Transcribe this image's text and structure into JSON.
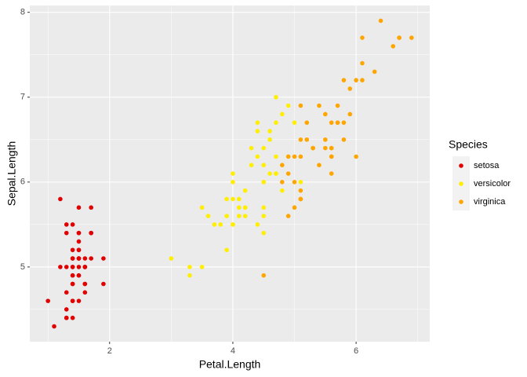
{
  "chart_data": {
    "type": "scatter",
    "x_label": "Petal.Length",
    "y_label": "Sepal.Length",
    "legend_title": "Species",
    "legend_position": "right",
    "grid": true,
    "xlim": [
      0.705,
      7.195
    ],
    "ylim": [
      4.12,
      8.08
    ],
    "xticks": [
      2,
      4,
      6
    ],
    "yticks": [
      5,
      6,
      7,
      8
    ],
    "series": [
      {
        "name": "setosa",
        "color": "#e00000",
        "x": [
          1.4,
          1.4,
          1.3,
          1.5,
          1.4,
          1.7,
          1.4,
          1.5,
          1.4,
          1.5,
          1.5,
          1.6,
          1.4,
          1.1,
          1.2,
          1.5,
          1.3,
          1.4,
          1.7,
          1.5,
          1.7,
          1.5,
          1.0,
          1.7,
          1.9,
          1.6,
          1.6,
          1.5,
          1.4,
          1.6,
          1.6,
          1.5,
          1.5,
          1.4,
          1.5,
          1.2,
          1.3,
          1.4,
          1.3,
          1.5,
          1.3,
          1.3,
          1.3,
          1.6,
          1.9,
          1.4,
          1.6,
          1.4,
          1.5,
          1.4
        ],
        "values": [
          5.1,
          4.9,
          4.7,
          4.6,
          5.0,
          5.4,
          4.6,
          5.0,
          4.4,
          4.9,
          5.4,
          4.8,
          4.8,
          4.3,
          5.8,
          5.7,
          5.4,
          5.1,
          5.7,
          5.1,
          5.4,
          5.1,
          4.6,
          5.1,
          4.8,
          5.0,
          5.0,
          5.2,
          5.2,
          4.7,
          4.8,
          5.4,
          5.2,
          5.5,
          4.9,
          5.0,
          5.5,
          4.9,
          4.4,
          5.1,
          5.0,
          4.5,
          4.4,
          5.0,
          5.1,
          4.8,
          5.1,
          4.6,
          5.3,
          5.0
        ]
      },
      {
        "name": "versicolor",
        "color": "#ffee00",
        "x": [
          4.7,
          4.5,
          4.9,
          4.0,
          4.6,
          4.5,
          4.7,
          3.3,
          4.6,
          3.9,
          3.5,
          4.2,
          4.0,
          4.7,
          3.6,
          4.4,
          4.5,
          4.1,
          4.5,
          3.9,
          4.8,
          4.0,
          4.9,
          4.7,
          4.3,
          4.4,
          4.8,
          5.0,
          4.5,
          3.5,
          3.8,
          3.7,
          3.9,
          5.1,
          4.5,
          4.5,
          4.7,
          4.4,
          4.1,
          4.0,
          4.4,
          4.6,
          4.0,
          3.3,
          4.2,
          4.2,
          4.2,
          4.3,
          3.0,
          4.1
        ],
        "values": [
          7.0,
          6.4,
          6.9,
          5.5,
          6.5,
          5.7,
          6.3,
          4.9,
          6.6,
          5.2,
          5.0,
          5.9,
          6.0,
          6.1,
          5.6,
          6.7,
          5.6,
          5.8,
          6.2,
          5.6,
          5.9,
          6.1,
          6.3,
          6.1,
          6.4,
          6.6,
          6.8,
          6.7,
          6.0,
          5.7,
          5.5,
          5.5,
          5.8,
          6.0,
          5.4,
          6.0,
          6.7,
          6.3,
          5.6,
          5.5,
          5.5,
          6.1,
          5.8,
          5.0,
          5.6,
          5.7,
          5.7,
          6.2,
          5.1,
          5.7
        ]
      },
      {
        "name": "virginica",
        "color": "#ffa500",
        "x": [
          6.0,
          5.1,
          5.9,
          5.6,
          5.8,
          6.6,
          4.5,
          6.3,
          5.8,
          6.1,
          5.1,
          5.3,
          5.5,
          5.0,
          5.1,
          5.3,
          5.5,
          6.7,
          6.9,
          5.0,
          5.7,
          4.9,
          6.7,
          4.9,
          5.7,
          6.0,
          4.8,
          4.9,
          5.6,
          5.8,
          6.1,
          6.4,
          5.6,
          5.1,
          5.6,
          6.1,
          5.6,
          5.5,
          4.8,
          5.4,
          5.6,
          5.1,
          5.1,
          5.9,
          5.7,
          5.2,
          5.0,
          5.2,
          5.4,
          5.1
        ],
        "values": [
          6.3,
          5.8,
          7.1,
          6.3,
          6.5,
          7.6,
          4.9,
          7.3,
          6.7,
          7.2,
          6.5,
          6.4,
          6.8,
          5.7,
          5.8,
          6.4,
          6.5,
          7.7,
          7.7,
          6.0,
          6.9,
          5.6,
          7.7,
          6.3,
          6.7,
          7.2,
          6.2,
          6.1,
          6.4,
          7.2,
          7.4,
          7.9,
          6.4,
          6.3,
          6.1,
          7.7,
          6.3,
          6.4,
          6.0,
          6.9,
          6.7,
          6.9,
          5.8,
          6.8,
          6.7,
          6.7,
          6.3,
          6.5,
          6.2,
          5.9
        ]
      }
    ]
  }
}
